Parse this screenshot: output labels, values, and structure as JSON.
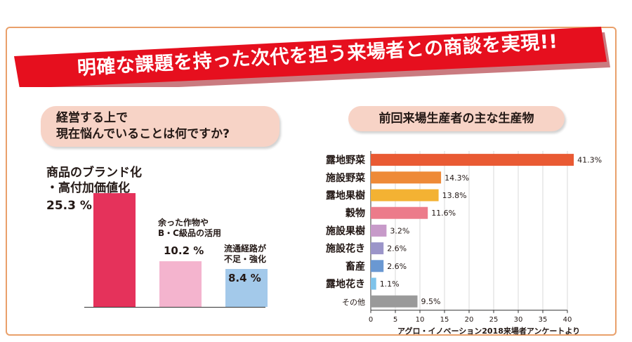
{
  "banner": {
    "title": "明確な課題を持った次代を担う来場者との商談を実現!!"
  },
  "left_chart": {
    "question_line1": "経営する上で",
    "question_line2": "現在悩んでいることは何ですか?",
    "chart_data": {
      "type": "bar",
      "categories": [
        "商品のブランド化・高付加価値化",
        "余った作物やB・C級品の活用",
        "流通経路が不足・強化"
      ],
      "values": [
        25.3,
        10.2,
        8.4
      ],
      "colors": [
        "#e5325b",
        "#f4b4ce",
        "#a3c9ea"
      ],
      "labels": [
        {
          "lines": [
            "商品のブランド化",
            "・高付加価値化"
          ],
          "value_text": "25.3 %"
        },
        {
          "lines": [
            "余った作物や",
            "B・C級品の活用"
          ],
          "value_text": "10.2 %"
        },
        {
          "lines": [
            "流通経路が",
            "不足・強化"
          ],
          "value_text": "8.4 %"
        }
      ]
    }
  },
  "right_chart": {
    "title": "前回来場生産者の主な生産物",
    "source": "アグロ・イノベーション2018来場者アンケートより",
    "chart_data": {
      "type": "bar",
      "orientation": "horizontal",
      "categories": [
        "露地野菜",
        "施設野菜",
        "露地果樹",
        "穀物",
        "施設果樹",
        "施設花き",
        "畜産",
        "露地花き",
        "その他"
      ],
      "values": [
        41.3,
        14.3,
        13.8,
        11.6,
        3.2,
        2.6,
        2.6,
        1.1,
        9.5
      ],
      "value_labels": [
        "41.3%",
        "14.3%",
        "13.8%",
        "11.6%",
        "3.2%",
        "2.6%",
        "2.6%",
        "1.1%",
        "9.5%"
      ],
      "colors": [
        "#e95a33",
        "#ee8a38",
        "#f3b233",
        "#ec7b8a",
        "#c79ac9",
        "#9b95c9",
        "#6a98d2",
        "#7ec3ea",
        "#9a9a9a"
      ],
      "xlim": [
        0,
        40
      ],
      "xticks": [
        "0",
        "5",
        "10",
        "15",
        "20",
        "25",
        "30",
        "35",
        "40"
      ]
    }
  }
}
